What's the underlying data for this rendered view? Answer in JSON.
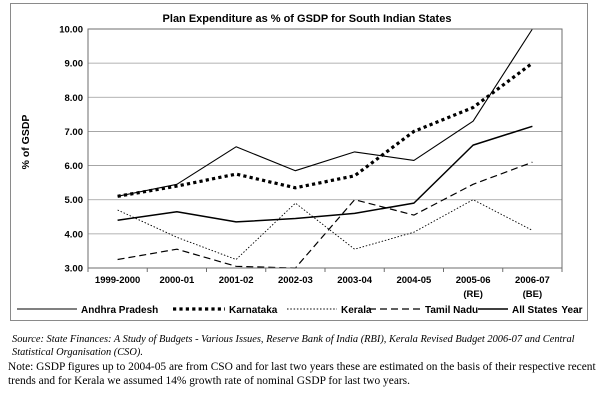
{
  "chart_data": {
    "type": "line",
    "title": "Plan Expenditure as % of GSDP for South Indian States",
    "ylabel": "% of GSDP",
    "xlabel": "Year",
    "categories": [
      "1999-2000",
      "2000-01",
      "2001-02",
      "2002-03",
      "2003-04",
      "2004-05",
      "2005-06 (RE)",
      "2006-07 (BE)"
    ],
    "ylim": [
      3.0,
      10.0
    ],
    "yticks": [
      "3.00",
      "4.00",
      "5.00",
      "6.00",
      "7.00",
      "8.00",
      "9.00",
      "10.00"
    ],
    "grid": true,
    "legend_position": "bottom",
    "series": [
      {
        "name": "Andhra Pradesh",
        "style": "thin-solid",
        "color": "#000000",
        "values": [
          5.1,
          5.45,
          6.55,
          5.85,
          6.4,
          6.15,
          7.3,
          10.0
        ]
      },
      {
        "name": "Karnataka",
        "style": "thick-dotted",
        "color": "#000000",
        "values": [
          5.1,
          5.4,
          5.75,
          5.35,
          5.7,
          7.0,
          7.7,
          9.0
        ]
      },
      {
        "name": "Kerala",
        "style": "thin-dotted",
        "color": "#000000",
        "values": [
          4.7,
          3.9,
          3.25,
          4.9,
          3.55,
          4.05,
          5.0,
          4.1
        ]
      },
      {
        "name": "Tamil Nadu",
        "style": "dashed",
        "color": "#000000",
        "values": [
          3.25,
          3.55,
          3.05,
          3.0,
          5.0,
          4.55,
          5.45,
          6.1
        ]
      },
      {
        "name": "All States",
        "style": "solid",
        "color": "#000000",
        "values": [
          4.4,
          4.65,
          4.35,
          4.45,
          4.6,
          4.9,
          6.6,
          7.15
        ]
      }
    ]
  },
  "source": {
    "label": "Source:",
    "text": "State Finances: A Study of Budgets - Various Issues, Reserve Bank of India (RBI), Kerala Revised Budget 2006-07 and Central Statistical Organisation (CSO)."
  },
  "note": {
    "label": "Note:",
    "text": "GSDP figures up to 2004-05 are from CSO and for last two years these are estimated on the basis of their respective recent trends and for Kerala we assumed 14% growth rate of nominal GSDP for last two years."
  }
}
